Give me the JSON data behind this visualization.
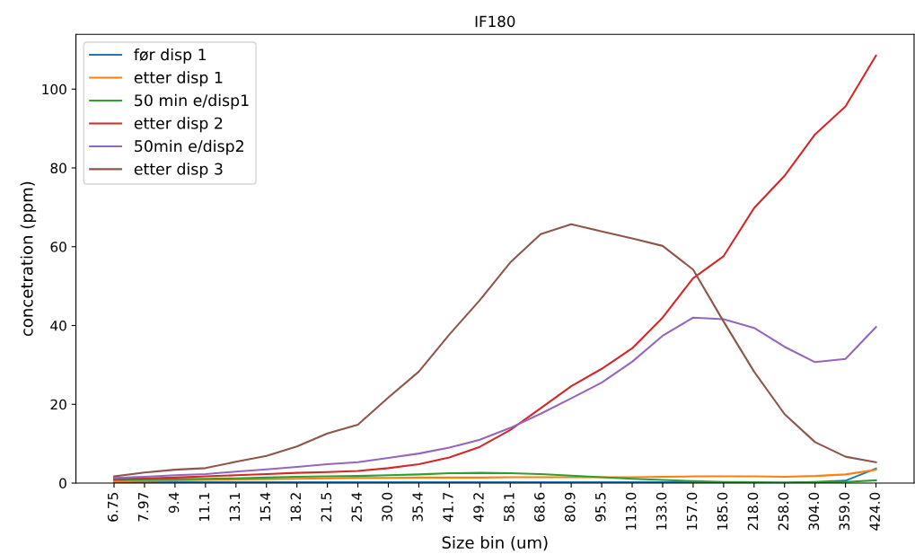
{
  "chart_data": {
    "type": "line",
    "title": "IF180",
    "xlabel": "Size bin (um)",
    "ylabel": "concetration (ppm)",
    "categories": [
      "6.75",
      "7.97",
      "9.4",
      "11.1",
      "13.1",
      "15.4",
      "18.2",
      "21.5",
      "25.4",
      "30.0",
      "35.4",
      "41.7",
      "49.2",
      "58.1",
      "68.6",
      "80.9",
      "95.5",
      "113.0",
      "133.0",
      "157.0",
      "185.0",
      "218.0",
      "258.0",
      "304.0",
      "359.0",
      "424.0"
    ],
    "series": [
      {
        "name": "før disp 1",
        "color": "#1f77b4",
        "values": [
          0.2,
          0.2,
          0.2,
          0.2,
          0.2,
          0.2,
          0.2,
          0.2,
          0.2,
          0.2,
          0.2,
          0.2,
          0.2,
          0.2,
          0.2,
          0.2,
          0.2,
          0.2,
          0.2,
          0.2,
          0.2,
          0.1,
          0.1,
          0.3,
          0.6,
          3.7
        ]
      },
      {
        "name": "etter disp 1",
        "color": "#ff7f0e",
        "values": [
          0.5,
          0.6,
          0.7,
          0.8,
          0.9,
          1.0,
          1.1,
          1.2,
          1.3,
          1.3,
          1.4,
          1.4,
          1.4,
          1.5,
          1.5,
          1.5,
          1.5,
          1.5,
          1.6,
          1.7,
          1.7,
          1.7,
          1.6,
          1.8,
          2.2,
          3.4
        ]
      },
      {
        "name": "50 min e/disp1",
        "color": "#2ca02c",
        "values": [
          0.8,
          0.9,
          1.0,
          1.1,
          1.2,
          1.4,
          1.6,
          1.7,
          1.8,
          2.0,
          2.2,
          2.5,
          2.6,
          2.5,
          2.3,
          1.9,
          1.5,
          1.1,
          0.8,
          0.5,
          0.3,
          0.2,
          0.1,
          0.2,
          0.3,
          0.7
        ]
      },
      {
        "name": "etter disp 2",
        "color": "#d62728",
        "values": [
          1.0,
          1.2,
          1.4,
          1.7,
          2.0,
          2.3,
          2.6,
          2.8,
          3.1,
          3.8,
          4.8,
          6.5,
          9.2,
          13.5,
          19,
          24.6,
          29,
          34.2,
          42,
          52,
          57.6,
          69.8,
          78,
          88.5,
          95.6,
          108.5
        ]
      },
      {
        "name": "50min e/disp2",
        "color": "#9467bd",
        "values": [
          1.3,
          1.6,
          2.0,
          2.3,
          2.9,
          3.5,
          4.1,
          4.8,
          5.3,
          6.4,
          7.5,
          9.0,
          11,
          14,
          17.6,
          21.5,
          25.5,
          30.8,
          37.4,
          42,
          41.6,
          39.4,
          34.6,
          30.7,
          31.5,
          39.6
        ]
      },
      {
        "name": "etter disp 3",
        "color": "#8c564b",
        "values": [
          1.7,
          2.7,
          3.4,
          3.8,
          5.4,
          6.9,
          9.3,
          12.6,
          14.8,
          21.7,
          28.3,
          37.7,
          46.4,
          56,
          63.2,
          65.7,
          63.9,
          62.1,
          60.2,
          54.2,
          41,
          28.3,
          17.5,
          10.4,
          6.7,
          5.3
        ]
      }
    ],
    "ylim": [
      0,
      113.9
    ],
    "yticks": [
      0,
      20,
      40,
      60,
      80,
      100
    ],
    "legend": "top left",
    "grid": false
  }
}
